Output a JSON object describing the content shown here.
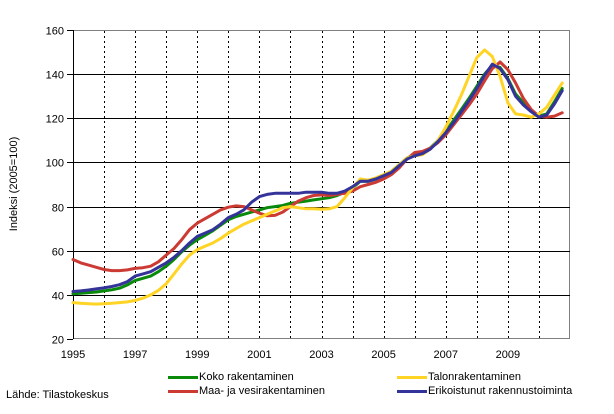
{
  "page": {
    "background": "#ffffff",
    "frame_color": "#808080",
    "grid_color": "#000000"
  },
  "source_note": "Lähde: Tilastokeskus",
  "chart_data": {
    "type": "line",
    "title": "",
    "xlabel": "",
    "ylabel": "Indeksi (2005=100)",
    "ylim": [
      20,
      160
    ],
    "yticks": [
      20,
      40,
      60,
      80,
      100,
      120,
      140,
      160
    ],
    "xlim": [
      1995,
      2011
    ],
    "xtick_labels": [
      "1995",
      "1997",
      "1999",
      "2001",
      "2003",
      "2005",
      "2007",
      "2009"
    ],
    "xtick_years": [
      1995,
      1997,
      1999,
      2001,
      2003,
      2005,
      2007,
      2009
    ],
    "x_gridline_years": [
      1996,
      1997,
      1998,
      1999,
      2000,
      2001,
      2002,
      2003,
      2004,
      2005,
      2006,
      2007,
      2008,
      2009,
      2010
    ],
    "grid": {
      "horizontal": "solid",
      "vertical": "dashed"
    },
    "legend_position": "bottom",
    "x_start": 1995,
    "x_step": 0.25,
    "series": [
      {
        "name": "Koko rakentaminen",
        "color": "#0a8a0a",
        "values": [
          40.5,
          40.7,
          41.0,
          41.3,
          41.8,
          42.3,
          43.0,
          44.5,
          46.5,
          47.5,
          48.5,
          50.5,
          53.0,
          56.0,
          59.5,
          62.5,
          65.0,
          67.0,
          69.0,
          71.5,
          74.0,
          75.5,
          76.5,
          77.5,
          78.5,
          79.5,
          80.0,
          80.5,
          81.5,
          82.0,
          82.5,
          83.0,
          83.5,
          84.0,
          85.0,
          86.5,
          88.5,
          91.5,
          91.5,
          92.5,
          94.0,
          96.0,
          99.0,
          102.0,
          103.5,
          104.5,
          106.5,
          110.0,
          114.0,
          119.0,
          124.0,
          129.0,
          134.5,
          140.0,
          144.0,
          143.0,
          138.0,
          131.0,
          127.0,
          123.5,
          121.0,
          122.0,
          127.5,
          133.5
        ]
      },
      {
        "name": "Maa- ja vesirakentaminen",
        "color": "#cc3b33",
        "values": [
          56.0,
          54.5,
          53.5,
          52.5,
          51.5,
          51.0,
          51.0,
          51.3,
          52.0,
          52.3,
          53.0,
          55.0,
          58.0,
          61.0,
          65.0,
          69.5,
          72.5,
          74.5,
          76.5,
          78.5,
          79.7,
          80.3,
          80.0,
          78.5,
          77.0,
          75.8,
          76.0,
          77.5,
          80.0,
          82.5,
          84.0,
          85.0,
          85.3,
          85.0,
          85.5,
          86.0,
          87.0,
          89.0,
          90.0,
          91.0,
          92.5,
          94.5,
          97.5,
          101.5,
          104.5,
          105.0,
          106.5,
          109.0,
          112.5,
          117.0,
          121.5,
          126.0,
          131.0,
          137.0,
          142.5,
          145.5,
          142.0,
          136.0,
          129.0,
          124.0,
          121.0,
          120.5,
          121.0,
          122.5
        ]
      },
      {
        "name": "Talonrakentaminen",
        "color": "#ffd424",
        "values": [
          36.5,
          36.2,
          36.0,
          35.8,
          36.0,
          36.2,
          36.5,
          36.8,
          37.5,
          38.5,
          40.0,
          42.0,
          45.0,
          49.5,
          54.0,
          58.0,
          60.5,
          62.0,
          63.5,
          65.5,
          68.0,
          70.0,
          72.0,
          73.5,
          75.0,
          76.5,
          78.0,
          79.5,
          80.0,
          79.5,
          79.0,
          79.0,
          78.8,
          79.0,
          80.0,
          84.0,
          88.5,
          92.5,
          92.0,
          93.0,
          94.5,
          96.0,
          99.0,
          102.0,
          103.0,
          103.5,
          106.0,
          110.0,
          116.0,
          123.0,
          130.5,
          139.0,
          147.5,
          151.0,
          148.0,
          139.0,
          127.0,
          122.0,
          121.5,
          120.5,
          122.0,
          125.0,
          130.5,
          136.0
        ]
      },
      {
        "name": "Erikoistunut rakennustoiminta",
        "color": "#333399",
        "values": [
          41.5,
          41.8,
          42.2,
          42.7,
          43.2,
          43.8,
          44.6,
          46.0,
          48.5,
          49.5,
          50.5,
          52.5,
          54.5,
          57.0,
          60.0,
          63.5,
          66.5,
          68.0,
          69.5,
          72.0,
          75.0,
          76.5,
          78.5,
          82.0,
          84.5,
          85.5,
          86.0,
          86.0,
          86.0,
          86.0,
          86.5,
          86.5,
          86.5,
          86.0,
          86.0,
          87.0,
          89.0,
          91.5,
          91.5,
          92.5,
          94.0,
          95.5,
          98.5,
          101.5,
          103.0,
          104.0,
          106.0,
          109.5,
          113.5,
          118.0,
          123.0,
          128.0,
          133.5,
          139.5,
          144.5,
          142.5,
          137.5,
          130.0,
          126.0,
          123.0,
          120.5,
          121.5,
          126.5,
          132.5
        ]
      }
    ],
    "legend_columns": [
      [
        0,
        1
      ],
      [
        2,
        3
      ]
    ]
  }
}
